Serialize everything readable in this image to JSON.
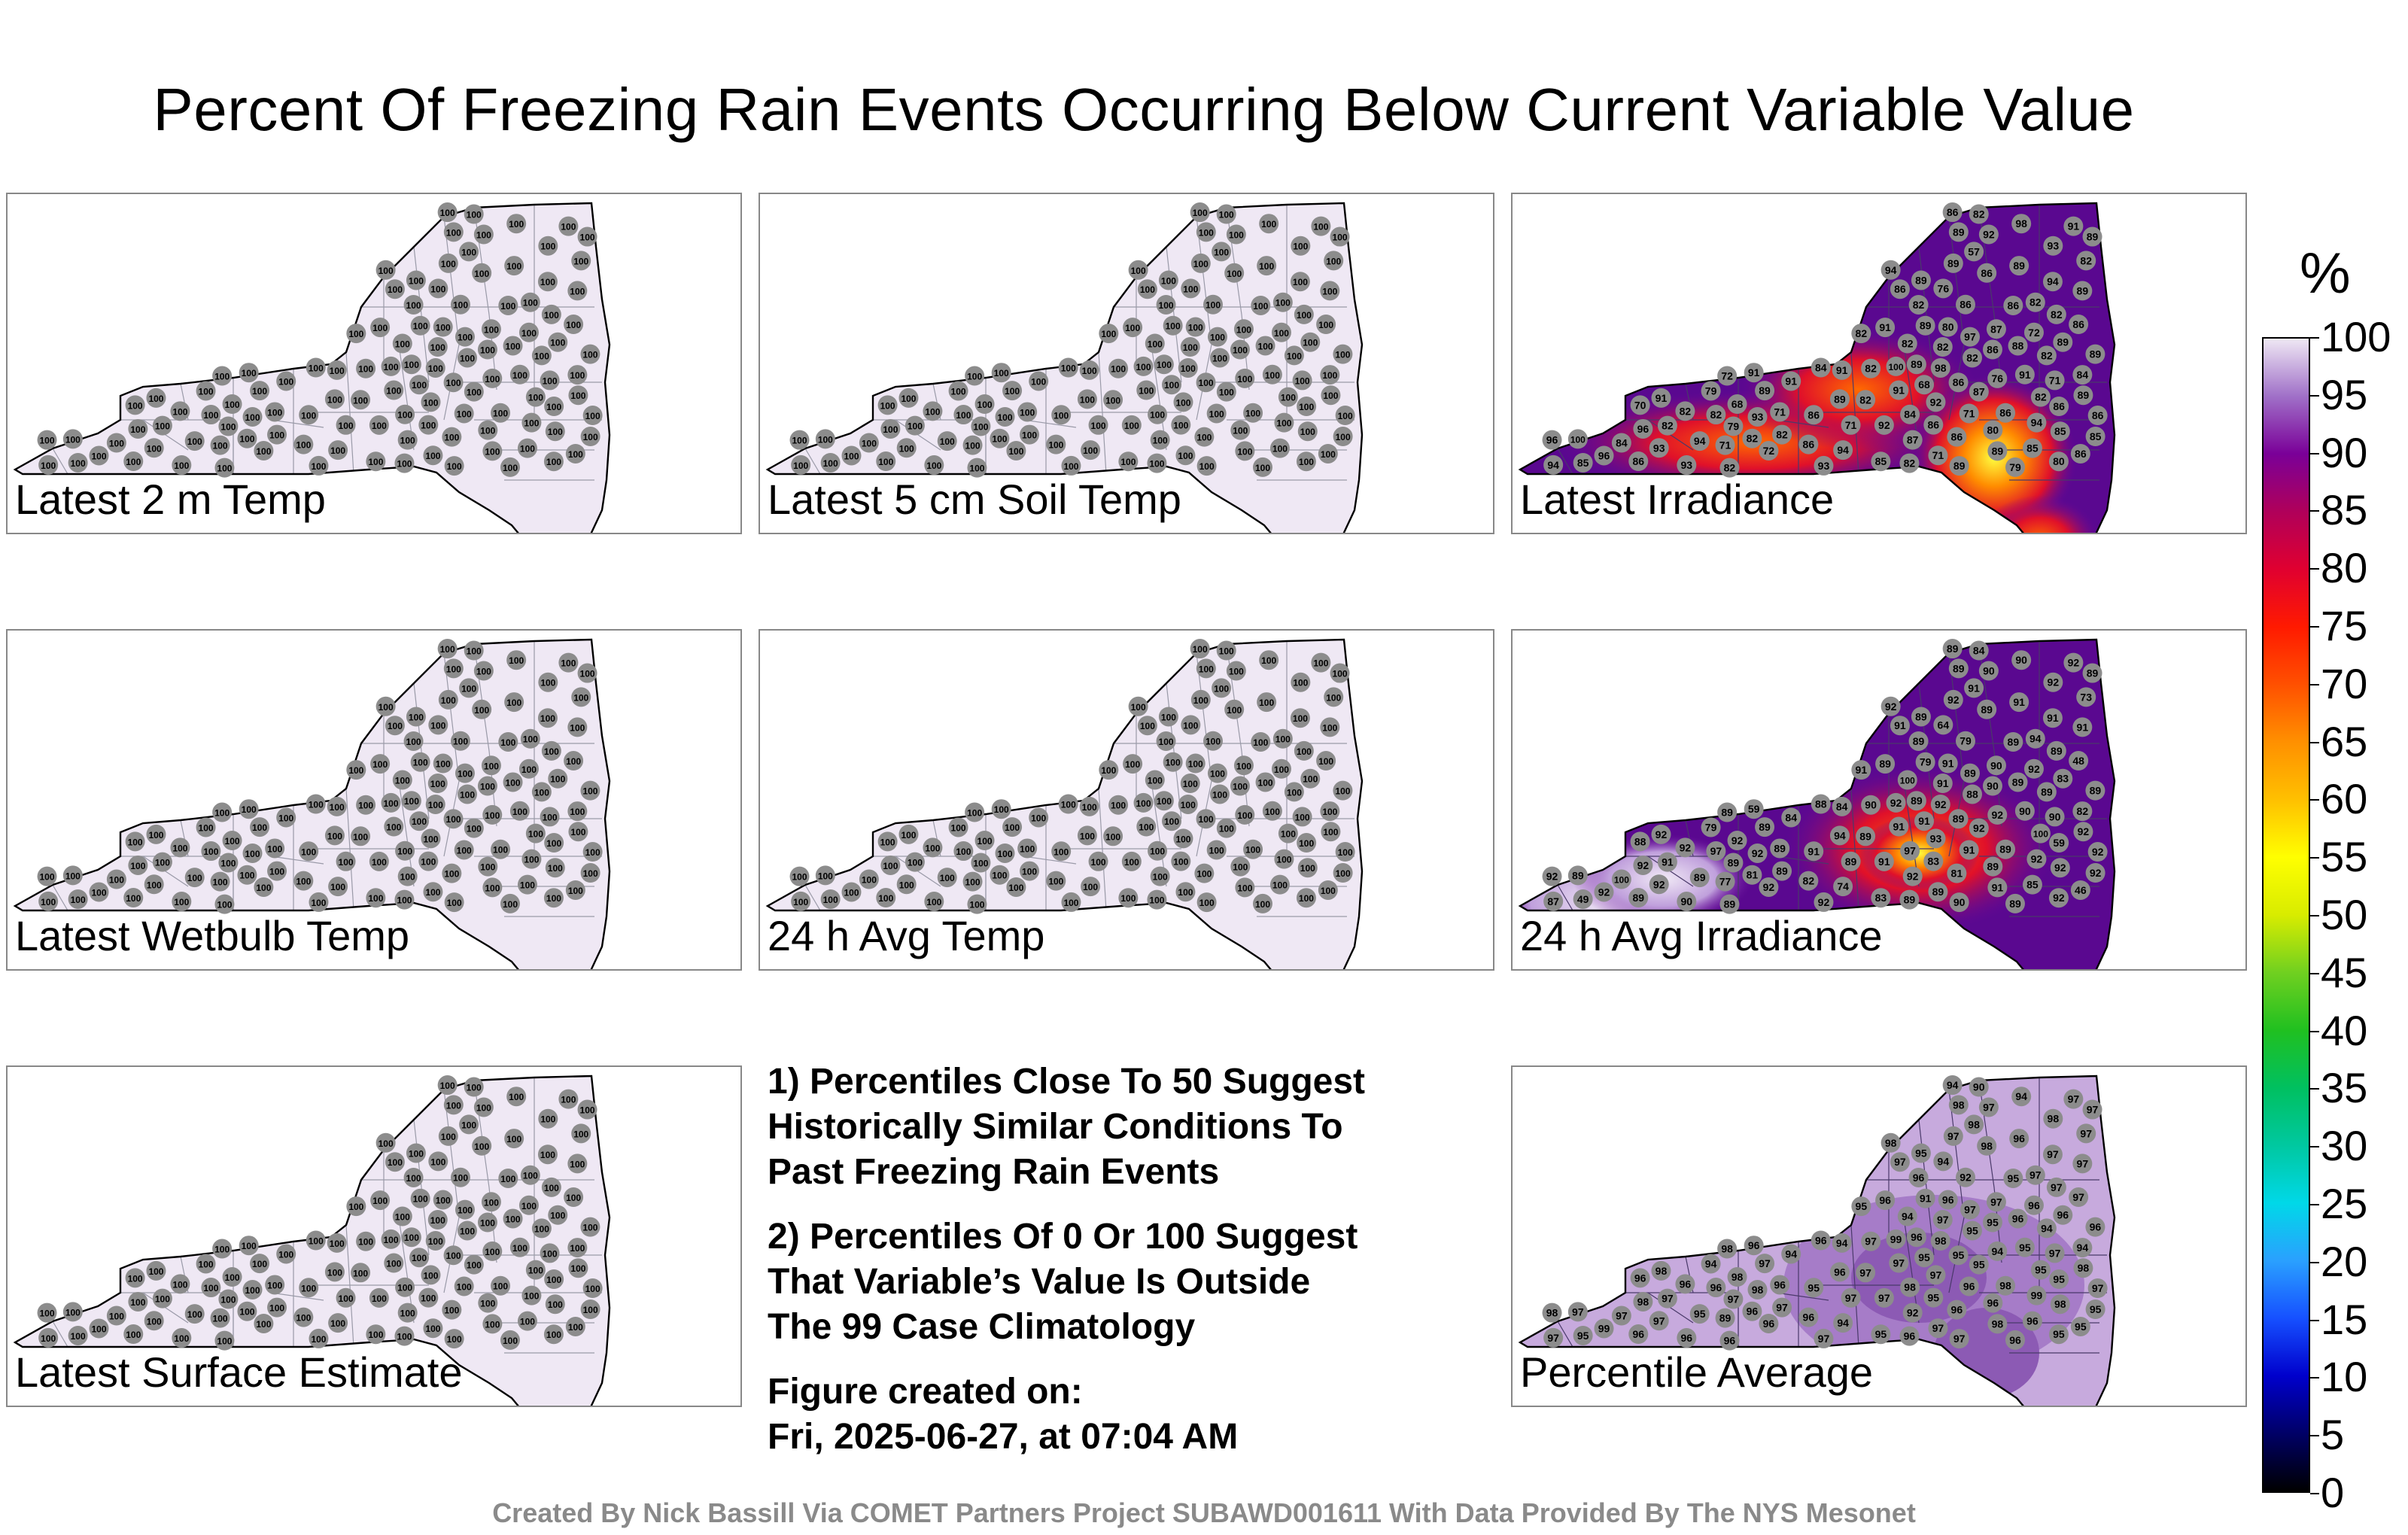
{
  "title": "Percent Of Freezing Rain Events Occurring Below Current Variable Value",
  "colorbar": {
    "unit": "%",
    "ticks": [
      "100",
      "95",
      "90",
      "85",
      "80",
      "75",
      "70",
      "65",
      "60",
      "55",
      "50",
      "45",
      "40",
      "35",
      "30",
      "25",
      "20",
      "15",
      "10",
      "5",
      "0"
    ]
  },
  "panels": [
    {
      "label": "Latest 2 m Temp",
      "kind": "uniform",
      "values": [
        "100",
        "100",
        "100",
        "100",
        "100",
        "100",
        "100",
        "100",
        "100",
        "100",
        "100",
        "100",
        "100",
        "100",
        "100",
        "100",
        "100",
        "100",
        "100",
        "100",
        "100",
        "100",
        "100",
        "100",
        "100",
        "100",
        "100",
        "100",
        "100",
        "100",
        "100",
        "100",
        "100",
        "100",
        "100",
        "100",
        "100",
        "100",
        "100",
        "100",
        "100",
        "100",
        "100",
        "100",
        "100",
        "100",
        "100",
        "100",
        "100",
        "100",
        "100",
        "100",
        "100",
        "100",
        "100",
        "100",
        "100",
        "100",
        "100",
        "100",
        "100",
        "100",
        "100",
        "100",
        "100",
        "100",
        "100",
        "100",
        "100",
        "100",
        "100",
        "100",
        "100",
        "100",
        "100",
        "100",
        "100",
        "100",
        "100",
        "100",
        "100",
        "100",
        "100",
        "100",
        "100",
        "100",
        "100",
        "100",
        "100",
        "100",
        "100",
        "100",
        "100",
        "100",
        "100",
        "100",
        "100",
        "100",
        "100",
        "100",
        "100",
        "100",
        "100",
        "100",
        "100",
        "100",
        "100",
        "100",
        "100",
        "100",
        "100",
        "100",
        "100",
        "100",
        "100",
        "100",
        "100",
        "100",
        "100",
        "100"
      ]
    },
    {
      "label": "Latest 5 cm Soil Temp",
      "kind": "uniform",
      "values": [
        "100",
        "100",
        "100",
        "100",
        "100",
        "100",
        "100",
        "100",
        "100",
        "100",
        "100",
        "100",
        "100",
        "100",
        "100",
        "100",
        "100",
        "100",
        "100",
        "100",
        "100",
        "100",
        "100",
        "100",
        "100",
        "100",
        "100",
        "100",
        "100",
        "100",
        "100",
        "100",
        "100",
        "100",
        "100",
        "100",
        "100",
        "100",
        "100",
        "100",
        "100",
        "100",
        "100",
        "100",
        "100",
        "100",
        "100",
        "100",
        "100",
        "100",
        "100",
        "100",
        "100",
        "100",
        "100",
        "100",
        "100",
        "100",
        "100",
        "100",
        "100",
        "100",
        "100",
        "100",
        "100",
        "100",
        "100",
        "100",
        "100",
        "100",
        "100",
        "100",
        "100",
        "100",
        "100",
        "100",
        "100",
        "100",
        "100",
        "100",
        "100",
        "100",
        "100",
        "100",
        "100",
        "100",
        "100",
        "100",
        "100",
        "100",
        "100",
        "100",
        "100",
        "100",
        "100",
        "100",
        "100",
        "100",
        "100",
        "100",
        "100",
        "100",
        "100",
        "100",
        "100",
        "100",
        "100",
        "100",
        "100",
        "100",
        "100",
        "100",
        "100",
        "100",
        "100",
        "100",
        "100",
        "100",
        "100",
        "100"
      ]
    },
    {
      "label": "Latest Irradiance",
      "kind": "irradiance",
      "values": [
        "93",
        "94",
        "96",
        "96",
        "96",
        "98",
        "100",
        "94",
        "93",
        "91",
        "89",
        "94",
        "93",
        "91",
        "93",
        "89",
        "89",
        "89",
        "92",
        "94",
        "86",
        "92",
        "89",
        "89",
        "89",
        "94",
        "89",
        "89",
        "91",
        "91",
        "72",
        "86",
        "91",
        "86",
        "89",
        "92",
        "93",
        "88",
        "98",
        "82",
        "89",
        "71",
        "86",
        "94",
        "86",
        "87",
        "82",
        "91",
        "86",
        "91",
        "82",
        "86",
        "82",
        "79",
        "89",
        "89",
        "86",
        "86",
        "85",
        "86",
        "85",
        "82",
        "89",
        "85",
        "91",
        "82",
        "79",
        "76",
        "82",
        "82",
        "87",
        "86",
        "82",
        "86",
        "89",
        "80",
        "86",
        "71",
        "80",
        "85",
        "84",
        "82",
        "82",
        "84",
        "84",
        "82",
        "87",
        "86",
        "82",
        "100",
        "97",
        "86",
        "71",
        "70",
        "79",
        "71",
        "72",
        "71",
        "82",
        "71",
        "86",
        "82",
        "82",
        "80",
        "85",
        "72",
        "68",
        "57",
        "68",
        "82",
        "84",
        "82",
        "76",
        "86",
        "82",
        "82",
        "92",
        "89",
        "86",
        "84"
      ]
    },
    {
      "label": "Latest Wetbulb Temp",
      "kind": "uniform",
      "values": [
        "100",
        "100",
        "100",
        "100",
        "100",
        "100",
        "100",
        "100",
        "100",
        "100",
        "100",
        "100",
        "100",
        "100",
        "100",
        "100",
        "100",
        "100",
        "100",
        "100",
        "100",
        "100",
        "100",
        "100",
        "100",
        "100",
        "100",
        "100",
        "100",
        "100",
        "100",
        "100",
        "100",
        "100",
        "100",
        "100",
        "100",
        "100",
        "100",
        "100",
        "100",
        "100",
        "100",
        "100",
        "100",
        "100",
        "100",
        "100",
        "100",
        "100",
        "100",
        "100",
        "100",
        "100",
        "100",
        "100",
        "100",
        "100",
        "100",
        "100",
        "100",
        "100",
        "100",
        "100",
        "100",
        "100",
        "100",
        "100",
        "100",
        "100",
        "100",
        "100",
        "100",
        "100",
        "100",
        "100",
        "100",
        "100",
        "100",
        "100",
        "100",
        "100",
        "100",
        "100",
        "100",
        "100",
        "100",
        "100",
        "100",
        "100",
        "100",
        "100",
        "100",
        "100",
        "100",
        "100",
        "100",
        "100",
        "100",
        "100",
        "100",
        "100",
        "100",
        "100",
        "100",
        "100",
        "100",
        "100",
        "100",
        "100",
        "100",
        "100",
        "100",
        "100",
        "100",
        "100",
        "100",
        "100",
        "100",
        "100"
      ]
    },
    {
      "label": "24 h Avg Temp",
      "kind": "uniform",
      "values": [
        "100",
        "100",
        "100",
        "100",
        "100",
        "100",
        "100",
        "100",
        "100",
        "100",
        "100",
        "100",
        "100",
        "100",
        "100",
        "100",
        "100",
        "100",
        "100",
        "100",
        "100",
        "100",
        "100",
        "100",
        "100",
        "100",
        "100",
        "100",
        "100",
        "100",
        "100",
        "100",
        "100",
        "100",
        "100",
        "100",
        "100",
        "100",
        "100",
        "100",
        "100",
        "100",
        "100",
        "100",
        "100",
        "100",
        "100",
        "100",
        "100",
        "100",
        "100",
        "100",
        "100",
        "100",
        "100",
        "100",
        "100",
        "100",
        "100",
        "100",
        "100",
        "100",
        "100",
        "100",
        "100",
        "100",
        "100",
        "100",
        "100",
        "100",
        "100",
        "100",
        "100",
        "100",
        "100",
        "100",
        "100",
        "100",
        "100",
        "100",
        "100",
        "100",
        "100",
        "100",
        "100",
        "100",
        "100",
        "100",
        "100",
        "100",
        "100",
        "100",
        "100",
        "100",
        "100",
        "100",
        "100",
        "100",
        "100",
        "100",
        "100",
        "100",
        "100",
        "100",
        "100",
        "100",
        "100",
        "100",
        "100",
        "100",
        "100",
        "100",
        "100",
        "100",
        "100",
        "100",
        "100",
        "100",
        "100",
        "100"
      ]
    },
    {
      "label": "24 h Avg Irradiance",
      "kind": "avgirr",
      "values": [
        "92",
        "92",
        "92",
        "92",
        "92",
        "92",
        "92",
        "91",
        "92",
        "92",
        "91",
        "92",
        "92",
        "91",
        "92",
        "91",
        "91",
        "89",
        "91",
        "87",
        "91",
        "90",
        "89",
        "92",
        "89",
        "89",
        "89",
        "89",
        "89",
        "90",
        "92",
        "89",
        "84",
        "81",
        "83",
        "93",
        "90",
        "89",
        "90",
        "89",
        "79",
        "77",
        "79",
        "74",
        "89",
        "92",
        "88",
        "84",
        "48",
        "59",
        "73",
        "82",
        "92",
        "79",
        "92",
        "89",
        "59",
        "46",
        "49",
        "83",
        "83",
        "89",
        "94",
        "92",
        "92",
        "90",
        "89",
        "64",
        "84",
        "81",
        "90",
        "89",
        "94",
        "92",
        "90",
        "92",
        "89",
        "89",
        "89",
        "85",
        "82",
        "100",
        "97",
        "100",
        "97",
        "100",
        "92",
        "89",
        "89",
        "89",
        "89",
        "89",
        "89",
        "88",
        "89",
        "89",
        "89",
        "90",
        "89",
        "91",
        "91",
        "91",
        "91",
        "91",
        "92",
        "92",
        "91",
        "91",
        "92",
        "89",
        "88",
        "91",
        "92",
        "90",
        "89",
        "89",
        "89",
        "91",
        "92",
        "89"
      ]
    },
    {
      "label": "Latest Surface Estimate",
      "kind": "uniform",
      "values": [
        "100",
        "100",
        "100",
        "100",
        "100",
        "100",
        "100",
        "100",
        "100",
        "100",
        "100",
        "100",
        "100",
        "100",
        "100",
        "100",
        "100",
        "100",
        "100",
        "100",
        "100",
        "100",
        "100",
        "100",
        "100",
        "100",
        "100",
        "100",
        "100",
        "100",
        "100",
        "100",
        "100",
        "100",
        "100",
        "100",
        "100",
        "100",
        "100",
        "100",
        "100",
        "100",
        "100",
        "100",
        "100",
        "100",
        "100",
        "100",
        "100",
        "100",
        "100",
        "100",
        "100",
        "100",
        "100",
        "100",
        "100",
        "100",
        "100",
        "100",
        "100",
        "100",
        "100",
        "100",
        "100",
        "100",
        "100",
        "100",
        "100",
        "100",
        "100",
        "100",
        "100",
        "100",
        "100",
        "100",
        "100",
        "100",
        "100",
        "100",
        "100",
        "100",
        "100",
        "100",
        "100",
        "100",
        "100",
        "100",
        "100",
        "100",
        "100",
        "100",
        "100",
        "100",
        "100",
        "100",
        "100",
        "100",
        "100",
        "100",
        "100",
        "100",
        "100",
        "100",
        "100",
        "100",
        "100",
        "100",
        "100",
        "100",
        "100",
        "100",
        "100",
        "100",
        "100",
        "100",
        "100",
        "100",
        "100",
        "100"
      ]
    },
    {
      "label": "Percentile Average",
      "kind": "average",
      "values": [
        "98",
        "98",
        "99",
        "98",
        "98",
        "98",
        "99",
        "97",
        "98",
        "98",
        "98",
        "99",
        "97",
        "97",
        "97",
        "97",
        "96",
        "97",
        "97",
        "97",
        "95",
        "97",
        "98",
        "98",
        "97",
        "95",
        "96",
        "96",
        "96",
        "95",
        "96",
        "95",
        "94",
        "96",
        "96",
        "97",
        "96",
        "96",
        "94",
        "96",
        "91",
        "89",
        "92",
        "94",
        "95",
        "95",
        "95",
        "94",
        "97",
        "96",
        "97",
        "96",
        "96",
        "94",
        "97",
        "95",
        "95",
        "95",
        "95",
        "95",
        "95",
        "96",
        "96",
        "98",
        "97",
        "97",
        "97",
        "94",
        "90",
        "96",
        "97",
        "98",
        "97",
        "97",
        "97",
        "95",
        "98",
        "96",
        "96",
        "96",
        "94",
        "95",
        "96",
        "97",
        "98",
        "94",
        "92",
        "94",
        "97",
        "97",
        "97",
        "96",
        "97",
        "96",
        "96",
        "97",
        "98",
        "97",
        "96",
        "96",
        "97",
        "97",
        "95",
        "96",
        "95",
        "96",
        "95",
        "98",
        "98",
        "97",
        "96",
        "97",
        "94",
        "95",
        "94",
        "97",
        "97",
        "98",
        "98",
        "96"
      ]
    }
  ],
  "notes": {
    "note1": "1) Percentiles Close To 50 Suggest\nHistorically Similar Conditions To\nPast Freezing Rain Events",
    "note2": "2) Percentiles Of 0 Or 100 Suggest\nThat Variable’s Value Is Outside\nThe 99 Case Climatology",
    "created_label": "Figure created on:",
    "created_date": "Fri, 2025-06-27, at 07:04 AM"
  },
  "footer": "Created By Nick Bassill Via COMET Partners Project SUBAWD001611 With Data Provided By The NYS Mesonet"
}
